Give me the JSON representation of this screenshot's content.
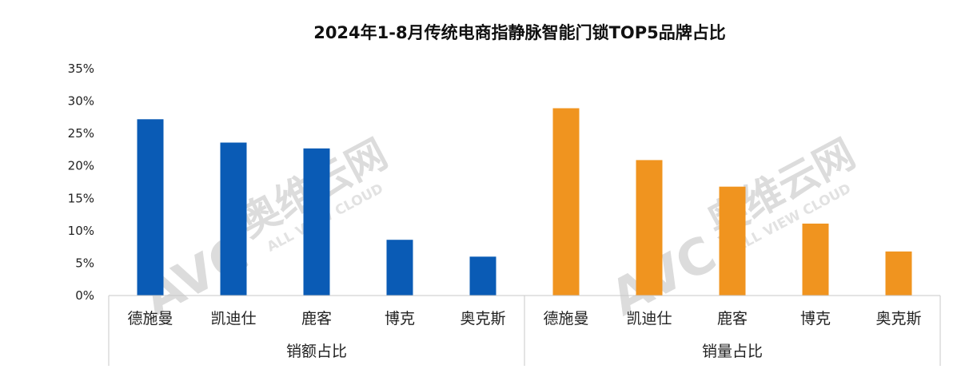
{
  "chart_data": {
    "type": "bar",
    "title": "2024年1-8月传统电商指静脉智能门锁TOP5品牌占比",
    "ylim": [
      0,
      35
    ],
    "yticks": [
      "0%",
      "5%",
      "10%",
      "15%",
      "20%",
      "25%",
      "30%",
      "35%"
    ],
    "groups": [
      {
        "name": "销额占比",
        "color": "#0a5bb5",
        "categories": [
          "德施曼",
          "凯迪仕",
          "鹿客",
          "博克",
          "奥克斯"
        ],
        "values": [
          27.2,
          23.6,
          22.7,
          8.6,
          6.0
        ]
      },
      {
        "name": "销量占比",
        "color": "#f0941f",
        "categories": [
          "德施曼",
          "凯迪仕",
          "鹿客",
          "博克",
          "奥克斯"
        ],
        "values": [
          28.9,
          20.9,
          16.8,
          11.1,
          6.8
        ]
      }
    ],
    "grid": false,
    "legend": "none"
  },
  "watermark": {
    "logo": "AVC",
    "name": "奥维云网",
    "sub": "ALL VIEW CLOUD"
  }
}
